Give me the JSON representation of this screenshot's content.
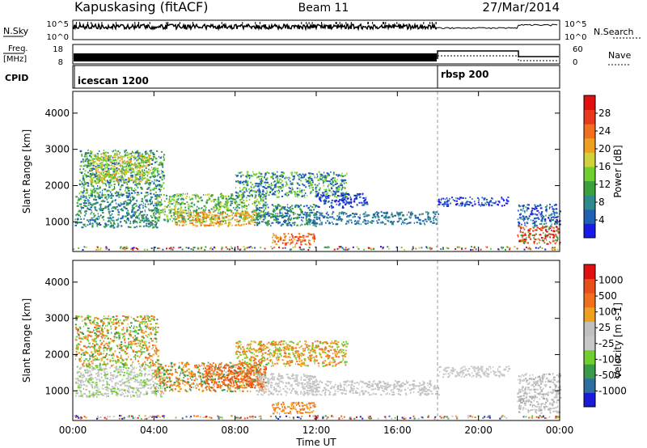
{
  "header": {
    "station": "Kapuskasing (fitACF)",
    "beam": "Beam 11",
    "date": "27/Mar/2014"
  },
  "status_panels": {
    "nsky_label": "N.Sky",
    "nsky_ticks": [
      "10^5",
      "10^0"
    ],
    "nsearch_label": "N.Search",
    "nsearch_ticks": [
      "10^5",
      "10^0"
    ],
    "freq_label": "Freq.",
    "freq_unit": "[MHz]",
    "freq_ticks": [
      "18",
      "8"
    ],
    "nave_label": "Nave",
    "nave_ticks": [
      "60",
      "0"
    ],
    "cpid_label": "CPID",
    "modes": [
      {
        "name": "icescan 1200",
        "start_hour": 0
      },
      {
        "name": "rbsp 200",
        "start_hour": 18
      }
    ]
  },
  "chart_data": [
    {
      "type": "heatmap",
      "name": "power-panel",
      "xlabel": "",
      "ylabel": "Slant Range [km]",
      "x_ticks": [
        "00:00",
        "04:00",
        "08:00",
        "12:00",
        "16:00",
        "20:00",
        "00:00"
      ],
      "xlim": [
        0,
        24
      ],
      "ylim": [
        180,
        4600
      ],
      "y_ticks": [
        1000,
        2000,
        3000,
        4000
      ],
      "colorbar": {
        "label": "Power [dB]",
        "ticks": [
          "4",
          "8",
          "12",
          "16",
          "20",
          "24",
          "28"
        ],
        "colors": [
          "#1a1ae6",
          "#1f5fb4",
          "#2e8b8b",
          "#3ca03c",
          "#6fcf2f",
          "#cfd23a",
          "#f0a020",
          "#f07020",
          "#e83a1a",
          "#e01010"
        ]
      },
      "regions": [
        {
          "t": [
            0.1,
            4.2
          ],
          "r": [
            850,
            1750
          ],
          "c": [
            "#1f5fb4",
            "#2e8b8b",
            "#3ca03c"
          ]
        },
        {
          "t": [
            0.3,
            4.5
          ],
          "r": [
            1750,
            3000
          ],
          "c": [
            "#1f5fb4",
            "#3ca03c",
            "#6fcf2f"
          ]
        },
        {
          "t": [
            0.8,
            3.8
          ],
          "r": [
            2100,
            2900
          ],
          "c": [
            "#cfd23a",
            "#f0a020",
            "#6fcf2f"
          ]
        },
        {
          "t": [
            4.0,
            9.5
          ],
          "r": [
            1000,
            1800
          ],
          "c": [
            "#2e8b8b",
            "#3ca03c",
            "#6fcf2f",
            "#cfd23a"
          ]
        },
        {
          "t": [
            5.0,
            9.0
          ],
          "r": [
            900,
            1300
          ],
          "c": [
            "#f07020",
            "#cfd23a",
            "#f0a020"
          ]
        },
        {
          "t": [
            9.0,
            12.0
          ],
          "r": [
            900,
            1500
          ],
          "c": [
            "#1f5fb4",
            "#3ca03c"
          ]
        },
        {
          "t": [
            9.8,
            11.9
          ],
          "r": [
            380,
            700
          ],
          "c": [
            "#f07020",
            "#f0a020",
            "#e83a1a"
          ]
        },
        {
          "t": [
            8.0,
            13.5
          ],
          "r": [
            1700,
            2400
          ],
          "c": [
            "#1f5fb4",
            "#6fcf2f"
          ]
        },
        {
          "t": [
            11.5,
            18.0
          ],
          "r": [
            950,
            1300
          ],
          "c": [
            "#1f5fb4",
            "#2e8b8b"
          ]
        },
        {
          "t": [
            12.0,
            14.5
          ],
          "r": [
            1400,
            1800
          ],
          "c": [
            "#1a1ae6",
            "#1f5fb4"
          ]
        },
        {
          "t": [
            18.0,
            21.5
          ],
          "r": [
            1450,
            1700
          ],
          "c": [
            "#1a1ae6",
            "#1f5fb4"
          ]
        },
        {
          "t": [
            21.9,
            24.0
          ],
          "r": [
            900,
            1500
          ],
          "c": [
            "#1a1ae6",
            "#1f5fb4",
            "#2e8b8b"
          ]
        },
        {
          "t": [
            21.9,
            24.0
          ],
          "r": [
            400,
            900
          ],
          "c": [
            "#e01010",
            "#e83a1a",
            "#f07020",
            "#3ca03c"
          ]
        }
      ]
    },
    {
      "type": "heatmap",
      "name": "velocity-panel",
      "xlabel": "Time UT",
      "ylabel": "Slant Range [km]",
      "x_ticks": [
        "00:00",
        "04:00",
        "08:00",
        "12:00",
        "16:00",
        "20:00",
        "00:00"
      ],
      "xlim": [
        0,
        24
      ],
      "ylim": [
        180,
        4600
      ],
      "y_ticks": [
        1000,
        2000,
        3000,
        4000
      ],
      "colorbar": {
        "label": "Velocity [m s-1]",
        "ticks": [
          "1000",
          "500",
          "100",
          "25",
          "-25",
          "-100",
          "-500",
          "-1000"
        ],
        "colors": [
          "#1a1ad8",
          "#2e6fa0",
          "#3a9a4a",
          "#6fcf2f",
          "#c8c8c8",
          "#c0c0c0",
          "#f0a020",
          "#f07020",
          "#e8501a",
          "#e01010"
        ]
      },
      "regions": [
        {
          "t": [
            0.1,
            4.2
          ],
          "r": [
            1700,
            3100
          ],
          "c": [
            "#f07020",
            "#f0a020",
            "#6fcf2f",
            "#3a9a4a"
          ]
        },
        {
          "t": [
            0.1,
            4.5
          ],
          "r": [
            850,
            1700
          ],
          "c": [
            "#c8c8c8",
            "#c0c0c0",
            "#6fcf2f"
          ]
        },
        {
          "t": [
            4.0,
            9.5
          ],
          "r": [
            1000,
            1800
          ],
          "c": [
            "#f07020",
            "#f0a020",
            "#3a9a4a"
          ]
        },
        {
          "t": [
            6.5,
            9.5
          ],
          "r": [
            1100,
            1700
          ],
          "c": [
            "#f07020",
            "#e8501a"
          ]
        },
        {
          "t": [
            9.0,
            12.0
          ],
          "r": [
            900,
            1500
          ],
          "c": [
            "#c8c8c8",
            "#c0c0c0"
          ]
        },
        {
          "t": [
            9.8,
            11.9
          ],
          "r": [
            380,
            700
          ],
          "c": [
            "#f0a020",
            "#f07020"
          ]
        },
        {
          "t": [
            8.0,
            13.5
          ],
          "r": [
            1700,
            2400
          ],
          "c": [
            "#f07020",
            "#f0a020",
            "#6fcf2f"
          ]
        },
        {
          "t": [
            11.5,
            18.0
          ],
          "r": [
            900,
            1300
          ],
          "c": [
            "#c8c8c8",
            "#c0c0c0"
          ]
        },
        {
          "t": [
            18.0,
            21.5
          ],
          "r": [
            1400,
            1700
          ],
          "c": [
            "#c8c8c8"
          ]
        },
        {
          "t": [
            21.9,
            24.0
          ],
          "r": [
            400,
            1500
          ],
          "c": [
            "#c8c8c8",
            "#c0c0c0",
            "#a8a8a8"
          ]
        }
      ]
    }
  ]
}
